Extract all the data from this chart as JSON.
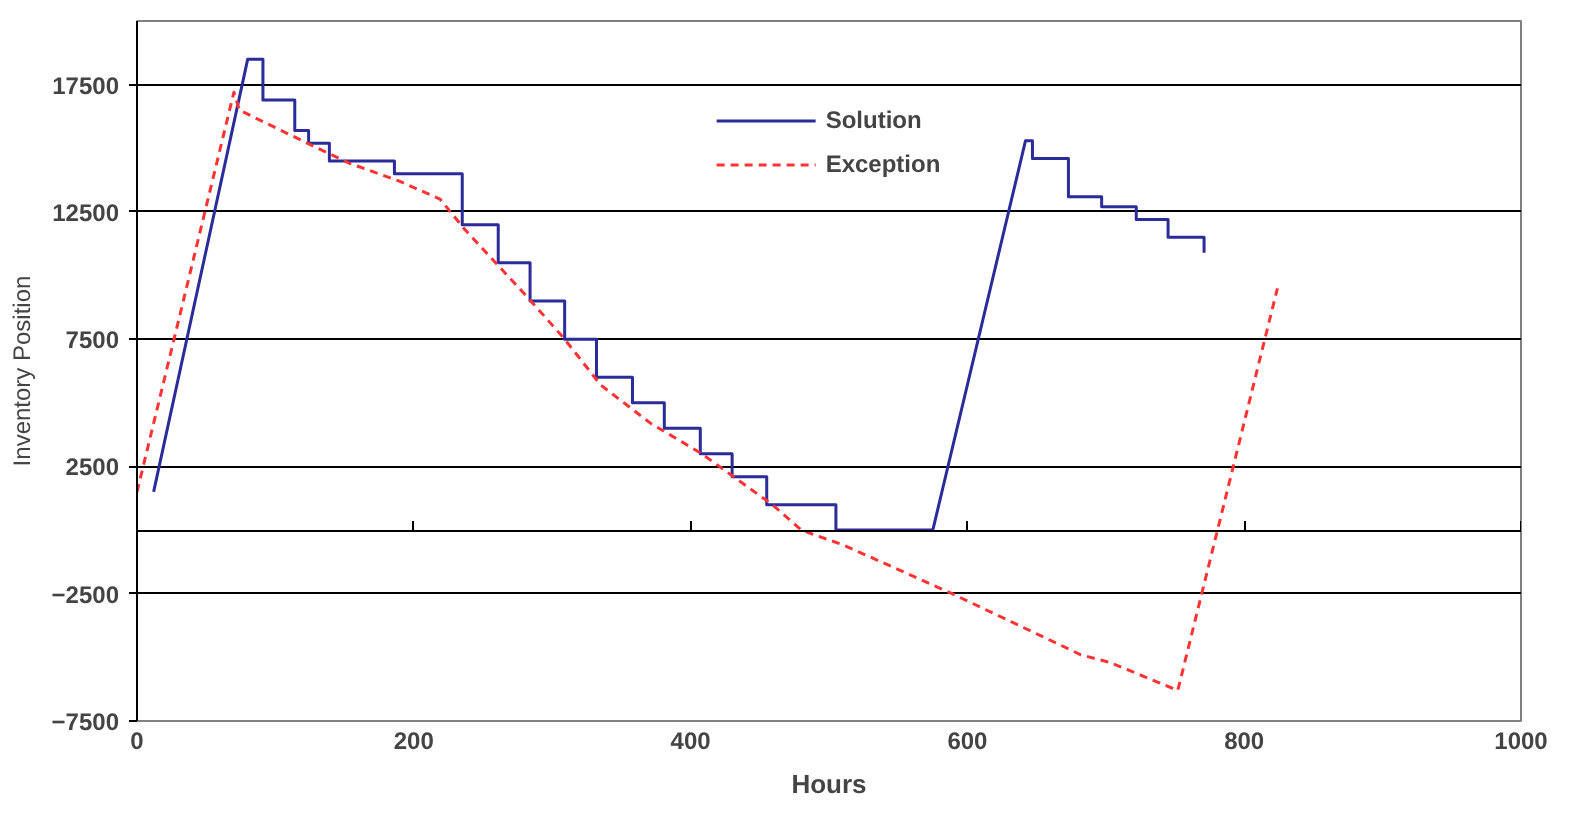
{
  "chart_data": {
    "type": "line",
    "xlabel": "Hours",
    "ylabel": "Inventory Position",
    "xlim": [
      0,
      1000
    ],
    "xticks": [
      0,
      200,
      400,
      600,
      800,
      1000
    ],
    "ylim": [
      -7500,
      20000
    ],
    "yticks": [
      17500,
      12500,
      7500,
      2500,
      -2500,
      -7500
    ],
    "grid": "y",
    "legend": "top",
    "marker": "none",
    "series": [
      {
        "name": "Solution",
        "color": "#2b2b9a",
        "line_style": "solid",
        "x": [
          12,
          80,
          91,
          91,
          114,
          114,
          124,
          124,
          139,
          139,
          186,
          186,
          235,
          235,
          261,
          261,
          284,
          284,
          309,
          309,
          332,
          332,
          358,
          358,
          381,
          381,
          407,
          407,
          430,
          430,
          455,
          455,
          505,
          505,
          575,
          642,
          647,
          647,
          673,
          673,
          697,
          697,
          722,
          722,
          745,
          745,
          771,
          771
        ],
        "values": [
          1500,
          18500,
          18500,
          16900,
          16900,
          15700,
          15700,
          15200,
          15200,
          14500,
          14500,
          14000,
          14000,
          12000,
          12000,
          10500,
          10500,
          9000,
          9000,
          7500,
          7500,
          6000,
          6000,
          5000,
          5000,
          4000,
          4000,
          3000,
          3000,
          2100,
          2100,
          1000,
          1000,
          0,
          0,
          15300,
          15300,
          14600,
          14600,
          13100,
          13100,
          12700,
          12700,
          12200,
          12200,
          11500,
          11500,
          10900
        ]
      },
      {
        "name": "Exception",
        "color": "#ff3333",
        "line_style": "dashed",
        "x": [
          0,
          70,
          74,
          123,
          154,
          190,
          219,
          237,
          283,
          309,
          335,
          371,
          408,
          459,
          480,
          511,
          589,
          682,
          703,
          752,
          824
        ],
        "values": [
          1500,
          17200,
          16500,
          15200,
          14400,
          13700,
          13000,
          11800,
          9100,
          7500,
          5700,
          4200,
          3000,
          1000,
          0,
          -600,
          -2500,
          -4900,
          -5200,
          -6300,
          9500
        ]
      }
    ]
  }
}
